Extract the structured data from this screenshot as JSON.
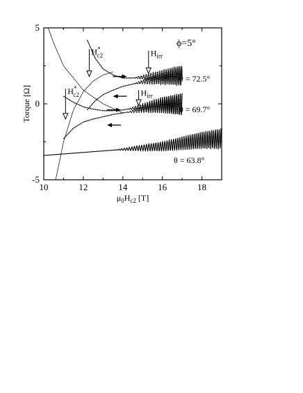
{
  "chart_data": {
    "type": "line",
    "xlabel_parts": {
      "main": "μ",
      "sub1": "0",
      "mid": "H",
      "sub2": "c2",
      "unit": " [T]"
    },
    "ylabel": "Torque [Ω]",
    "xlim": [
      10,
      19
    ],
    "ylim": [
      -5,
      5
    ],
    "x_ticks": [
      10,
      12,
      14,
      16,
      18
    ],
    "y_ticks": [
      -5,
      0,
      5
    ],
    "x_tick_labels": [
      "10",
      "12",
      "14",
      "16",
      "18"
    ],
    "y_tick_labels": [
      "-5",
      "0",
      "5"
    ],
    "grid": false,
    "legend": "none",
    "panel_label": "ϕ=5°",
    "series": [
      {
        "name": "θ = 72.5°",
        "hysteresis": true,
        "x": [
          12.2,
          12.6,
          13.0,
          13.5,
          14.0,
          14.5,
          15.0,
          15.5,
          16.0,
          16.5,
          17.0
        ],
        "y_decreasing": [
          4.2,
          3.0,
          2.3,
          1.9,
          1.7,
          1.7,
          1.75,
          1.8,
          1.85,
          1.9,
          1.9
        ],
        "y_increasing": [
          -0.4,
          0.2,
          0.6,
          0.9,
          1.15,
          1.3,
          1.45,
          1.55,
          1.65,
          1.75,
          1.8
        ],
        "oscillation_start": 14.5,
        "oscillation_amplitude_at_end": 0.6
      },
      {
        "name": "θ = 69.7°",
        "hysteresis": true,
        "x": [
          11.0,
          11.5,
          12.0,
          12.5,
          13.0,
          13.5,
          14.0,
          14.5,
          15.0,
          15.5,
          16.0,
          16.5,
          17.0
        ],
        "y_decreasing": [
          0.5,
          0.1,
          -0.2,
          -0.35,
          -0.45,
          -0.45,
          -0.4,
          -0.3,
          -0.2,
          -0.1,
          0.0,
          0.0,
          0.0
        ],
        "y_increasing": [
          -2.3,
          -1.6,
          -1.2,
          -1.0,
          -0.85,
          -0.7,
          -0.6,
          -0.5,
          -0.35,
          -0.25,
          -0.15,
          -0.1,
          -0.05
        ],
        "oscillation_start": 14.2,
        "oscillation_amplitude_at_end": 0.7
      },
      {
        "name": "θ = 63.8°",
        "hysteresis": false,
        "x": [
          10.0,
          11.0,
          12.0,
          13.0,
          14.0,
          15.0,
          16.0,
          17.0,
          18.0,
          19.0
        ],
        "y": [
          -3.4,
          -3.3,
          -3.2,
          -3.1,
          -3.0,
          -2.9,
          -2.8,
          -2.6,
          -2.4,
          -2.3
        ],
        "oscillation_start": 13.5,
        "oscillation_amplitude_at_end": 0.7
      }
    ],
    "extra_curves": [
      {
        "x": [
          10.0,
          10.5,
          11.0,
          12.0,
          13.0,
          14.0
        ],
        "y": [
          5.8,
          4.0,
          2.5,
          0.9,
          0.0,
          -0.6
        ]
      },
      {
        "x": [
          10.6,
          11.0,
          11.5,
          12.0,
          12.5,
          13.0,
          13.5
        ],
        "y": [
          -5.0,
          -2.5,
          -0.4,
          0.8,
          1.5,
          1.9,
          2.1
        ]
      }
    ],
    "annotations": {
      "hc2_upper": {
        "main": "H",
        "sup": "*",
        "sub": "c2",
        "x": 12.3,
        "y_top": 3.6,
        "y_tip": 1.8
      },
      "hc2_lower": {
        "main": "H",
        "sup": "*",
        "sub": "c2",
        "x": 11.1,
        "y_top": 1.0,
        "y_tip": -1.0
      },
      "hirr_upper": {
        "main": "H",
        "sub": "irr",
        "x": 15.3,
        "y_top": 3.5,
        "y_tip": 2.0
      },
      "hirr_lower": {
        "main": "H",
        "sub": "irr",
        "x": 14.8,
        "y_top": 0.9,
        "y_tip": -0.1
      },
      "theta_labels": [
        "θ = 72.5°",
        "θ = 69.7°",
        "θ = 63.8°"
      ],
      "sweep_arrows": [
        {
          "x_from": 13.5,
          "x_to": 14.2,
          "y": 1.8
        },
        {
          "x_from": 14.2,
          "x_to": 13.5,
          "y": 0.5
        },
        {
          "x_from": 13.2,
          "x_to": 13.9,
          "y": -0.4
        },
        {
          "x_from": 13.9,
          "x_to": 13.2,
          "y": -1.4
        }
      ]
    }
  }
}
